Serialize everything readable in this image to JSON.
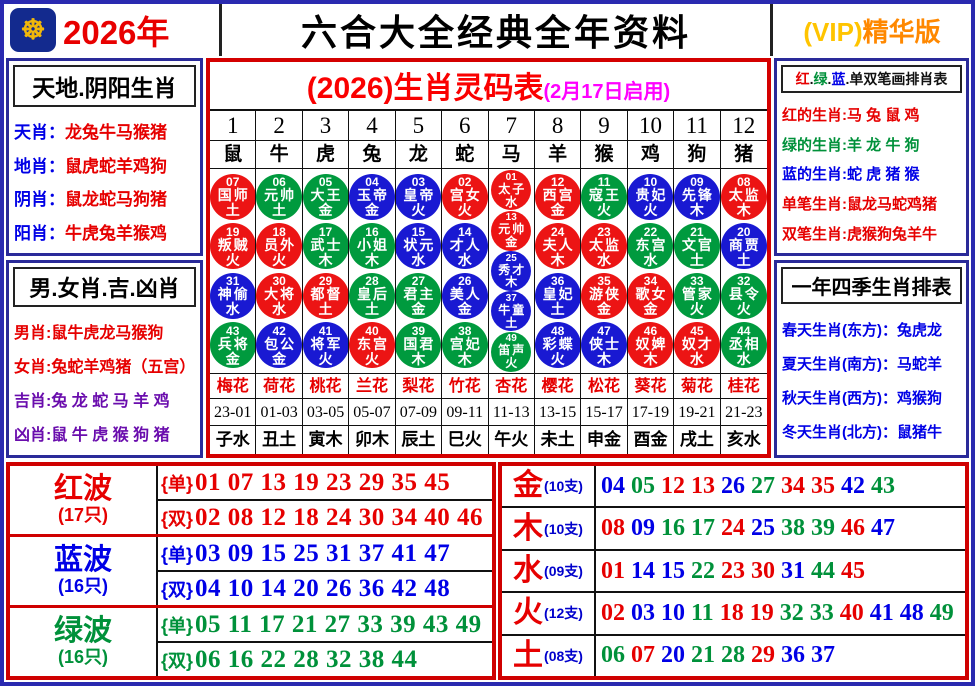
{
  "header": {
    "year": "2026年",
    "title": "六合大全经典全年资料",
    "vip_left": "(VIP)",
    "vip_right": "精华版",
    "logo_icon": "gold-coin-emblem"
  },
  "left_top": {
    "title": "天地.阴阳生肖",
    "rows": [
      {
        "label": "天肖：",
        "value": "龙兔牛马猴猪"
      },
      {
        "label": "地肖：",
        "value": "鼠虎蛇羊鸡狗"
      },
      {
        "label": "阴肖：",
        "value": "鼠龙蛇马狗猪"
      },
      {
        "label": "阳肖：",
        "value": "牛虎兔羊猴鸡"
      }
    ]
  },
  "left_bottom": {
    "title": "男.女肖.吉.凶肖",
    "rows": [
      {
        "label": "男肖:",
        "value": "鼠牛虎龙马猴狗",
        "color": "red"
      },
      {
        "label": "女肖:",
        "value": "兔蛇羊鸡猪（五宫）",
        "color": "red"
      },
      {
        "label": "吉肖:",
        "value": "兔 龙 蛇 马 羊 鸡",
        "color": "purple"
      },
      {
        "label": "凶肖:",
        "value": "鼠 牛 虎 猴 狗 猪",
        "color": "purple"
      }
    ]
  },
  "right_top": {
    "title_parts": [
      {
        "text": "红",
        "color": "red"
      },
      {
        "text": ".",
        "color": "black"
      },
      {
        "text": "绿",
        "color": "green"
      },
      {
        "text": ".",
        "color": "black"
      },
      {
        "text": "蓝",
        "color": "blue"
      },
      {
        "text": ".",
        "color": "black"
      },
      {
        "text": "单双笔画排肖表",
        "color": "black"
      }
    ],
    "rows": [
      {
        "label": "红的生肖:",
        "value": "马 兔 鼠 鸡",
        "color": "red"
      },
      {
        "label": "绿的生肖:",
        "value": "羊 龙 牛 狗",
        "color": "green"
      },
      {
        "label": "蓝的生肖:",
        "value": "蛇 虎 猪 猴",
        "color": "blue"
      },
      {
        "label": "单笔生肖:",
        "value": "鼠龙马蛇鸡猪",
        "color": "red"
      },
      {
        "label": "双笔生肖:",
        "value": "虎猴狗兔羊牛",
        "color": "red"
      }
    ]
  },
  "right_bottom": {
    "title": "一年四季生肖排表",
    "rows": [
      {
        "label": "春天生肖(东方)：",
        "value": "兔虎龙"
      },
      {
        "label": "夏天生肖(南方)：",
        "value": "马蛇羊"
      },
      {
        "label": "秋天生肖(西方)：",
        "value": "鸡猴狗"
      },
      {
        "label": "冬天生肖(北方)：",
        "value": "鼠猪牛"
      }
    ]
  },
  "center": {
    "title_main": "(2026)生肖灵码表",
    "title_sub": "(2月17日启用)",
    "columns": [
      {
        "num": "1",
        "zodiac": "鼠",
        "flower": "梅花",
        "time": "23-01",
        "branch": "子水",
        "balls": [
          {
            "n": "07",
            "t": "国师",
            "e": "土",
            "c": "red"
          },
          {
            "n": "19",
            "t": "叛贼",
            "e": "火",
            "c": "red"
          },
          {
            "n": "31",
            "t": "神偷",
            "e": "水",
            "c": "blue"
          },
          {
            "n": "43",
            "t": "兵将",
            "e": "金",
            "c": "green"
          }
        ]
      },
      {
        "num": "2",
        "zodiac": "牛",
        "flower": "荷花",
        "time": "01-03",
        "branch": "丑土",
        "balls": [
          {
            "n": "06",
            "t": "元帅",
            "e": "土",
            "c": "green"
          },
          {
            "n": "18",
            "t": "员外",
            "e": "火",
            "c": "red"
          },
          {
            "n": "30",
            "t": "大将",
            "e": "水",
            "c": "red"
          },
          {
            "n": "42",
            "t": "包公",
            "e": "金",
            "c": "blue"
          }
        ]
      },
      {
        "num": "3",
        "zodiac": "虎",
        "flower": "桃花",
        "time": "03-05",
        "branch": "寅木",
        "balls": [
          {
            "n": "05",
            "t": "大王",
            "e": "金",
            "c": "green"
          },
          {
            "n": "17",
            "t": "武士",
            "e": "木",
            "c": "green"
          },
          {
            "n": "29",
            "t": "都督",
            "e": "土",
            "c": "red"
          },
          {
            "n": "41",
            "t": "将军",
            "e": "火",
            "c": "blue"
          }
        ]
      },
      {
        "num": "4",
        "zodiac": "兔",
        "flower": "兰花",
        "time": "05-07",
        "branch": "卯木",
        "balls": [
          {
            "n": "04",
            "t": "玉帝",
            "e": "金",
            "c": "blue"
          },
          {
            "n": "16",
            "t": "小姐",
            "e": "木",
            "c": "green"
          },
          {
            "n": "28",
            "t": "皇后",
            "e": "土",
            "c": "green"
          },
          {
            "n": "40",
            "t": "东宫",
            "e": "火",
            "c": "red"
          }
        ]
      },
      {
        "num": "5",
        "zodiac": "龙",
        "flower": "梨花",
        "time": "07-09",
        "branch": "辰土",
        "balls": [
          {
            "n": "03",
            "t": "皇帝",
            "e": "火",
            "c": "blue"
          },
          {
            "n": "15",
            "t": "状元",
            "e": "水",
            "c": "blue"
          },
          {
            "n": "27",
            "t": "君主",
            "e": "金",
            "c": "green"
          },
          {
            "n": "39",
            "t": "国君",
            "e": "木",
            "c": "green"
          }
        ]
      },
      {
        "num": "6",
        "zodiac": "蛇",
        "flower": "竹花",
        "time": "09-11",
        "branch": "巳火",
        "balls": [
          {
            "n": "02",
            "t": "宫女",
            "e": "火",
            "c": "red"
          },
          {
            "n": "14",
            "t": "才人",
            "e": "水",
            "c": "blue"
          },
          {
            "n": "26",
            "t": "美人",
            "e": "金",
            "c": "blue"
          },
          {
            "n": "38",
            "t": "宫妃",
            "e": "木",
            "c": "green"
          }
        ]
      },
      {
        "num": "7",
        "zodiac": "马",
        "flower": "杏花",
        "time": "11-13",
        "branch": "午火",
        "balls": [
          {
            "n": "01",
            "t": "太子",
            "e": "水",
            "c": "red"
          },
          {
            "n": "13",
            "t": "元帅",
            "e": "金",
            "c": "red"
          },
          {
            "n": "25",
            "t": "秀才",
            "e": "木",
            "c": "blue"
          },
          {
            "n": "37",
            "t": "牛童",
            "e": "土",
            "c": "blue"
          },
          {
            "n": "49",
            "t": "笛声",
            "e": "火",
            "c": "green"
          }
        ]
      },
      {
        "num": "8",
        "zodiac": "羊",
        "flower": "樱花",
        "time": "13-15",
        "branch": "未土",
        "balls": [
          {
            "n": "12",
            "t": "西宫",
            "e": "金",
            "c": "red"
          },
          {
            "n": "24",
            "t": "夫人",
            "e": "木",
            "c": "red"
          },
          {
            "n": "36",
            "t": "皇妃",
            "e": "土",
            "c": "blue"
          },
          {
            "n": "48",
            "t": "彩蝶",
            "e": "火",
            "c": "blue"
          }
        ]
      },
      {
        "num": "9",
        "zodiac": "猴",
        "flower": "松花",
        "time": "15-17",
        "branch": "申金",
        "balls": [
          {
            "n": "11",
            "t": "寇王",
            "e": "火",
            "c": "green"
          },
          {
            "n": "23",
            "t": "太监",
            "e": "水",
            "c": "red"
          },
          {
            "n": "35",
            "t": "游侠",
            "e": "金",
            "c": "red"
          },
          {
            "n": "47",
            "t": "侠士",
            "e": "木",
            "c": "blue"
          }
        ]
      },
      {
        "num": "10",
        "zodiac": "鸡",
        "flower": "葵花",
        "time": "17-19",
        "branch": "酉金",
        "balls": [
          {
            "n": "10",
            "t": "贵妃",
            "e": "火",
            "c": "blue"
          },
          {
            "n": "22",
            "t": "东宫",
            "e": "水",
            "c": "green"
          },
          {
            "n": "34",
            "t": "歌女",
            "e": "金",
            "c": "red"
          },
          {
            "n": "46",
            "t": "奴婢",
            "e": "木",
            "c": "red"
          }
        ]
      },
      {
        "num": "11",
        "zodiac": "狗",
        "flower": "菊花",
        "time": "19-21",
        "branch": "戌土",
        "balls": [
          {
            "n": "09",
            "t": "先锋",
            "e": "木",
            "c": "blue"
          },
          {
            "n": "21",
            "t": "文官",
            "e": "土",
            "c": "green"
          },
          {
            "n": "33",
            "t": "管家",
            "e": "火",
            "c": "green"
          },
          {
            "n": "45",
            "t": "奴才",
            "e": "水",
            "c": "red"
          }
        ]
      },
      {
        "num": "12",
        "zodiac": "猪",
        "flower": "桂花",
        "time": "21-23",
        "branch": "亥水",
        "balls": [
          {
            "n": "08",
            "t": "太监",
            "e": "木",
            "c": "red"
          },
          {
            "n": "20",
            "t": "商贾",
            "e": "土",
            "c": "blue"
          },
          {
            "n": "32",
            "t": "县令",
            "e": "火",
            "c": "green"
          },
          {
            "n": "44",
            "t": "丞相",
            "e": "水",
            "c": "green"
          }
        ]
      }
    ]
  },
  "waves": {
    "odd_prefix": "{单}",
    "even_prefix": "{双}",
    "groups": [
      {
        "name": "红波",
        "count": "(17只)",
        "color": "red",
        "odd": "01 07 13 19 23 29 35 45",
        "even": "02 08 12 18 24 30 34 40 46"
      },
      {
        "name": "蓝波",
        "count": "(16只)",
        "color": "blue",
        "odd": "03 09 15 25 31 37 41 47",
        "even": "04 10 14 20 26 36 42 48"
      },
      {
        "name": "绿波",
        "count": "(16只)",
        "color": "green",
        "odd": "05 11 17 21 27 33 39 43 49",
        "even": "06 16 22 28 32 38 44"
      }
    ]
  },
  "elements": {
    "rows": [
      {
        "name": "金",
        "count": "(10支)",
        "numbers": [
          [
            "04",
            "blue"
          ],
          [
            "05",
            "green"
          ],
          [
            "12",
            "red"
          ],
          [
            "13",
            "red"
          ],
          [
            "26",
            "blue"
          ],
          [
            "27",
            "green"
          ],
          [
            "34",
            "red"
          ],
          [
            "35",
            "red"
          ],
          [
            "42",
            "blue"
          ],
          [
            "43",
            "green"
          ]
        ]
      },
      {
        "name": "木",
        "count": "(10支)",
        "numbers": [
          [
            "08",
            "red"
          ],
          [
            "09",
            "blue"
          ],
          [
            "16",
            "green"
          ],
          [
            "17",
            "green"
          ],
          [
            "24",
            "red"
          ],
          [
            "25",
            "blue"
          ],
          [
            "38",
            "green"
          ],
          [
            "39",
            "green"
          ],
          [
            "46",
            "red"
          ],
          [
            "47",
            "blue"
          ]
        ]
      },
      {
        "name": "水",
        "count": "(09支)",
        "numbers": [
          [
            "01",
            "red"
          ],
          [
            "14",
            "blue"
          ],
          [
            "15",
            "blue"
          ],
          [
            "22",
            "green"
          ],
          [
            "23",
            "red"
          ],
          [
            "30",
            "red"
          ],
          [
            "31",
            "blue"
          ],
          [
            "44",
            "green"
          ],
          [
            "45",
            "red"
          ]
        ]
      },
      {
        "name": "火",
        "count": "(12支)",
        "numbers": [
          [
            "02",
            "red"
          ],
          [
            "03",
            "blue"
          ],
          [
            "10",
            "blue"
          ],
          [
            "11",
            "green"
          ],
          [
            "18",
            "red"
          ],
          [
            "19",
            "red"
          ],
          [
            "32",
            "green"
          ],
          [
            "33",
            "green"
          ],
          [
            "40",
            "red"
          ],
          [
            "41",
            "blue"
          ],
          [
            "48",
            "blue"
          ],
          [
            "49",
            "green"
          ]
        ]
      },
      {
        "name": "土",
        "count": "(08支)",
        "numbers": [
          [
            "06",
            "green"
          ],
          [
            "07",
            "red"
          ],
          [
            "20",
            "blue"
          ],
          [
            "21",
            "green"
          ],
          [
            "28",
            "green"
          ],
          [
            "29",
            "red"
          ],
          [
            "36",
            "blue"
          ],
          [
            "37",
            "blue"
          ]
        ]
      }
    ]
  }
}
